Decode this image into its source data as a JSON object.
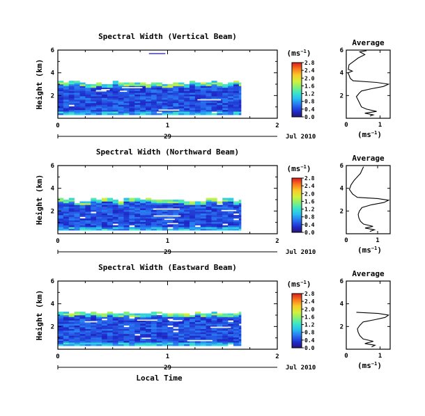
{
  "chart_data": [
    {
      "type": "heatmap",
      "title": "Spectral Width (Vertical Beam)",
      "ylabel": "Height (km)",
      "yticks": [
        "2",
        "4",
        "6"
      ],
      "ylim": [
        0,
        6
      ],
      "xticks": [
        "0",
        "1",
        "2"
      ],
      "xlim": [
        0,
        2
      ],
      "date_day": "29",
      "date_label": "Jul 2010",
      "colorbar": {
        "unit": "(ms−1)",
        "ticks": [
          "0.0",
          "0.4",
          "0.8",
          "1.2",
          "1.6",
          "2.0",
          "2.4",
          "2.8"
        ],
        "range": [
          0,
          2.8
        ]
      },
      "data_extent": {
        "t_end": 1.67,
        "h_top": 3.1
      },
      "stray": [
        {
          "t0": 0.83,
          "t1": 0.98,
          "h": 5.65,
          "v": 0.2
        }
      ],
      "avg": {
        "title": "Average",
        "xlabel": "(ms−1)",
        "xticks": [
          "0",
          "1"
        ],
        "xlim": [
          0,
          1.3
        ],
        "yticks": [
          "2",
          "4",
          "6"
        ],
        "ylim": [
          0,
          6
        ],
        "profile": [
          [
            0.7,
            0.2
          ],
          [
            0.8,
            0.3
          ],
          [
            0.55,
            0.45
          ],
          [
            0.9,
            0.6
          ],
          [
            0.6,
            0.8
          ],
          [
            0.45,
            1.0
          ],
          [
            0.4,
            1.3
          ],
          [
            0.35,
            1.6
          ],
          [
            0.3,
            1.9
          ],
          [
            0.38,
            2.2
          ],
          [
            0.45,
            2.4
          ],
          [
            0.75,
            2.6
          ],
          [
            1.1,
            2.8
          ],
          [
            1.25,
            3.0
          ],
          [
            0.9,
            3.15
          ],
          [
            0.2,
            3.3
          ],
          [
            0.12,
            3.5
          ],
          [
            0.08,
            3.8
          ],
          [
            0.05,
            4.0
          ],
          [
            0.18,
            4.15
          ],
          [
            0.06,
            4.3
          ],
          [
            0.08,
            4.7
          ],
          [
            0.35,
            5.3
          ],
          [
            0.55,
            5.6
          ],
          [
            0.4,
            5.85
          ],
          [
            0.6,
            5.95
          ]
        ]
      }
    },
    {
      "type": "heatmap",
      "title": "Spectral Width (Northward Beam)",
      "ylabel": "Height (km)",
      "yticks": [
        "2",
        "4",
        "6"
      ],
      "ylim": [
        0,
        6
      ],
      "xticks": [
        "0",
        "1",
        "2"
      ],
      "xlim": [
        0,
        2
      ],
      "date_day": "29",
      "date_label": "Jul 2010",
      "colorbar": {
        "unit": "(ms−1)",
        "ticks": [
          "0.0",
          "0.4",
          "0.8",
          "1.2",
          "1.6",
          "2.0",
          "2.4",
          "2.8"
        ],
        "range": [
          0,
          2.8
        ]
      },
      "data_extent": {
        "t_end": 1.67,
        "h_top": 3.0
      },
      "stray": [],
      "avg": {
        "title": "Average",
        "xlabel": "(ms−1)",
        "xticks": [
          "0",
          "1"
        ],
        "xlim": [
          0,
          1.4
        ],
        "yticks": [
          "2",
          "4",
          "6"
        ],
        "ylim": [
          0,
          6
        ],
        "profile": [
          [
            0.75,
            0.2
          ],
          [
            0.9,
            0.35
          ],
          [
            0.6,
            0.5
          ],
          [
            0.85,
            0.65
          ],
          [
            0.55,
            0.85
          ],
          [
            0.45,
            1.1
          ],
          [
            0.4,
            1.4
          ],
          [
            0.38,
            1.7
          ],
          [
            0.42,
            2.0
          ],
          [
            0.5,
            2.3
          ],
          [
            0.8,
            2.55
          ],
          [
            1.2,
            2.75
          ],
          [
            1.35,
            2.95
          ],
          [
            1.0,
            3.1
          ],
          [
            0.35,
            3.2
          ],
          [
            0.2,
            3.5
          ],
          [
            0.1,
            3.9
          ],
          [
            0.15,
            4.3
          ],
          [
            0.25,
            4.7
          ],
          [
            0.35,
            5.0
          ],
          [
            0.45,
            5.3
          ],
          [
            0.5,
            5.6
          ],
          [
            0.55,
            5.9
          ]
        ]
      }
    },
    {
      "type": "heatmap",
      "title": "Spectral Width (Eastward Beam)",
      "ylabel": "Height (km)",
      "yticks": [
        "2",
        "4",
        "6"
      ],
      "ylim": [
        0,
        6
      ],
      "xticks": [
        "0",
        "1",
        "2"
      ],
      "xlim": [
        0,
        2
      ],
      "date_day": "29",
      "date_label": "Jul 2010",
      "xlabel": "Local Time",
      "colorbar": {
        "unit": "(ms−1)",
        "ticks": [
          "0.0",
          "0.4",
          "0.8",
          "1.2",
          "1.6",
          "2.0",
          "2.4",
          "2.8"
        ],
        "range": [
          0,
          2.8
        ]
      },
      "data_extent": {
        "t_end": 1.67,
        "h_top": 3.2
      },
      "stray": [],
      "avg": {
        "title": "Average",
        "xlabel": "(ms−1)",
        "xticks": [
          "0",
          "1"
        ],
        "xlim": [
          0,
          1.3
        ],
        "yticks": [
          "2",
          "4",
          "6"
        ],
        "ylim": [
          0,
          6
        ],
        "profile": [
          [
            0.75,
            0.2
          ],
          [
            0.85,
            0.35
          ],
          [
            0.55,
            0.5
          ],
          [
            0.8,
            0.7
          ],
          [
            0.5,
            0.9
          ],
          [
            0.4,
            1.2
          ],
          [
            0.35,
            1.5
          ],
          [
            0.33,
            1.8
          ],
          [
            0.4,
            2.1
          ],
          [
            0.5,
            2.4
          ],
          [
            0.85,
            2.6
          ],
          [
            1.15,
            2.8
          ],
          [
            1.25,
            3.0
          ],
          [
            0.95,
            3.15
          ],
          [
            0.3,
            3.25
          ]
        ]
      }
    }
  ]
}
